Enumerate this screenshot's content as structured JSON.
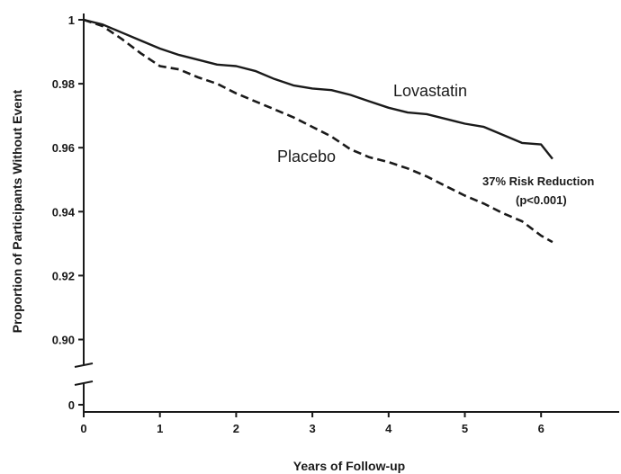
{
  "chart_data": {
    "type": "line",
    "xlabel": "Years of Follow-up",
    "ylabel": "Proportion of Participants Without Event",
    "xlim": [
      0,
      7
    ],
    "ylim": [
      0.89,
      1.0
    ],
    "axis_break": true,
    "below_break_tick": {
      "value": 0,
      "label": "0"
    },
    "x_ticks": [
      {
        "value": 0,
        "label": "0"
      },
      {
        "value": 1,
        "label": "1"
      },
      {
        "value": 2,
        "label": "2"
      },
      {
        "value": 3,
        "label": "3"
      },
      {
        "value": 4,
        "label": "4"
      },
      {
        "value": 5,
        "label": "5"
      },
      {
        "value": 6,
        "label": "6"
      }
    ],
    "y_ticks": [
      {
        "value": 1.0,
        "label": "1"
      },
      {
        "value": 0.98,
        "label": "0.98"
      },
      {
        "value": 0.96,
        "label": "0.96"
      },
      {
        "value": 0.94,
        "label": "0.94"
      },
      {
        "value": 0.92,
        "label": "0.92"
      },
      {
        "value": 0.9,
        "label": "0.90"
      }
    ],
    "grid": false,
    "series": [
      {
        "name": "Lovastatin",
        "color": "#1a1a1a",
        "line_style": "solid",
        "x": [
          0,
          0.25,
          0.5,
          0.75,
          1.0,
          1.25,
          1.5,
          1.75,
          2.0,
          2.25,
          2.5,
          2.75,
          3.0,
          3.25,
          3.5,
          3.75,
          4.0,
          4.25,
          4.5,
          4.75,
          5.0,
          5.25,
          5.5,
          5.75,
          6.0,
          6.15
        ],
        "y": [
          1.0,
          0.9985,
          0.996,
          0.9935,
          0.991,
          0.989,
          0.9875,
          0.986,
          0.9855,
          0.984,
          0.9815,
          0.9795,
          0.9785,
          0.978,
          0.9765,
          0.9745,
          0.9725,
          0.971,
          0.9705,
          0.969,
          0.9675,
          0.9665,
          0.964,
          0.9615,
          0.961,
          0.9565
        ]
      },
      {
        "name": "Placebo",
        "color": "#1a1a1a",
        "line_style": "dashed",
        "x": [
          0,
          0.25,
          0.5,
          0.75,
          1.0,
          1.25,
          1.5,
          1.75,
          2.0,
          2.25,
          2.5,
          2.75,
          3.0,
          3.25,
          3.5,
          3.75,
          4.0,
          4.25,
          4.5,
          4.75,
          5.0,
          5.25,
          5.5,
          5.75,
          6.0,
          6.15
        ],
        "y": [
          1.0,
          0.998,
          0.994,
          0.9895,
          0.9855,
          0.9845,
          0.982,
          0.98,
          0.977,
          0.9745,
          0.972,
          0.9695,
          0.9665,
          0.9635,
          0.9595,
          0.957,
          0.9555,
          0.9535,
          0.951,
          0.948,
          0.945,
          0.9425,
          0.9395,
          0.937,
          0.9325,
          0.9305
        ]
      }
    ],
    "annotations": {
      "lovastatin_label": "Lovastatin",
      "placebo_label": "Placebo",
      "risk_line1": "37% Risk Reduction",
      "risk_line2": "(p<0.001)"
    }
  }
}
